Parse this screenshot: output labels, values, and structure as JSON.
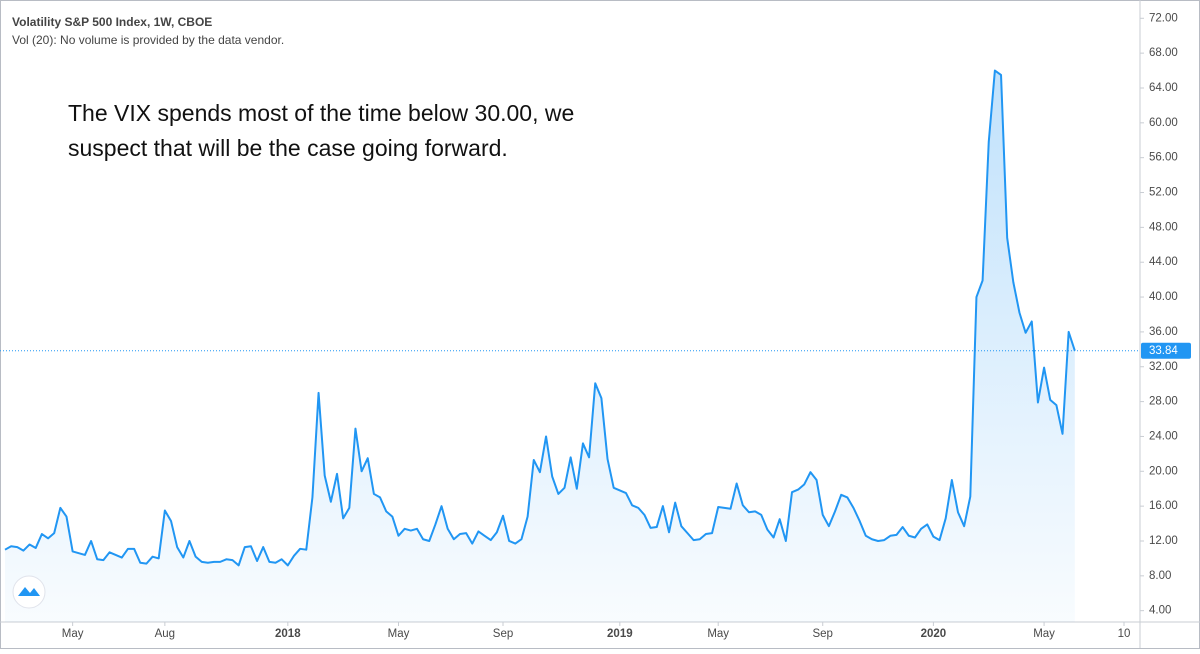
{
  "chart_data": {
    "type": "area",
    "title": "Volatility S&P 500 Index, 1W, CBOE",
    "subtitle": "Vol (20): No volume is provided by the data vendor.",
    "annotation": [
      "The VIX spends most of the time below 30.00, we",
      "suspect that will be the case going forward."
    ],
    "color": "#2196f3",
    "last_value_color": "#2196f3",
    "categories": [
      null,
      null,
      null,
      null,
      null,
      null,
      null,
      null,
      null,
      null,
      null,
      "May",
      null,
      null,
      null,
      null,
      null,
      null,
      null,
      null,
      null,
      null,
      null,
      null,
      null,
      null,
      "Aug",
      null,
      null,
      null,
      null,
      null,
      null,
      null,
      null,
      null,
      null,
      null,
      null,
      null,
      null,
      null,
      null,
      null,
      null,
      null,
      "2018",
      null,
      null,
      null,
      null,
      null,
      null,
      null,
      null,
      null,
      null,
      null,
      null,
      null,
      null,
      null,
      null,
      null,
      "May",
      null,
      null,
      null,
      null,
      null,
      null,
      null,
      null,
      null,
      null,
      null,
      null,
      null,
      null,
      null,
      null,
      "Sep",
      null,
      null,
      null,
      null,
      null,
      null,
      null,
      null,
      null,
      null,
      null,
      null,
      null,
      null,
      null,
      null,
      null,
      null,
      "2019",
      null,
      null,
      null,
      null,
      null,
      null,
      null,
      null,
      null,
      null,
      null,
      null,
      null,
      null,
      null,
      "May",
      null,
      null,
      null,
      null,
      null,
      null,
      null,
      null,
      null,
      null,
      null,
      null,
      null,
      null,
      null,
      null,
      "Sep",
      null,
      null,
      null,
      null,
      null,
      null,
      null,
      null,
      null,
      null,
      null,
      null,
      null,
      null,
      null,
      null,
      null,
      "2020",
      null,
      null,
      null,
      null,
      null,
      null,
      null,
      null,
      null,
      null,
      null,
      null,
      null,
      null,
      null,
      null,
      null,
      "May",
      null,
      null,
      null,
      null,
      null,
      null,
      null,
      null,
      null,
      null,
      null,
      null,
      "10"
    ],
    "values": [
      11.0,
      11.4,
      11.3,
      10.9,
      11.6,
      11.2,
      12.8,
      12.3,
      12.9,
      15.8,
      14.8,
      10.8,
      10.6,
      10.4,
      12.0,
      9.9,
      9.8,
      10.7,
      10.4,
      10.1,
      11.1,
      11.1,
      9.5,
      9.4,
      10.2,
      10.0,
      15.5,
      14.3,
      11.3,
      10.1,
      12.0,
      10.2,
      9.6,
      9.5,
      9.6,
      9.6,
      9.9,
      9.8,
      9.2,
      11.3,
      11.4,
      9.7,
      11.3,
      9.6,
      9.5,
      9.9,
      9.2,
      10.3,
      11.1,
      11.0,
      17.0,
      29.0,
      19.5,
      16.5,
      19.7,
      14.6,
      15.8,
      24.9,
      20.0,
      21.5,
      17.4,
      17.0,
      15.4,
      14.8,
      12.6,
      13.4,
      13.2,
      13.4,
      12.2,
      12.0,
      13.9,
      16.0,
      13.4,
      12.2,
      12.8,
      12.9,
      11.7,
      13.1,
      12.6,
      12.1,
      13.0,
      14.9,
      12.0,
      11.7,
      12.2,
      14.8,
      21.3,
      19.9,
      24.0,
      19.4,
      17.4,
      18.1,
      21.6,
      18.0,
      23.2,
      21.6,
      30.1,
      28.4,
      21.4,
      18.1,
      17.8,
      17.5,
      16.1,
      15.8,
      15.0,
      13.5,
      13.6,
      16.0,
      13.0,
      16.4,
      13.7,
      12.9,
      12.1,
      12.2,
      12.8,
      12.9,
      15.9,
      15.8,
      15.7,
      18.6,
      16.1,
      15.3,
      15.4,
      15.0,
      13.3,
      12.4,
      14.5,
      12.0,
      17.6,
      17.9,
      18.5,
      19.9,
      19.0,
      15.0,
      13.7,
      15.4,
      17.3,
      17.0,
      15.8,
      14.3,
      12.6,
      12.2,
      12.0,
      12.1,
      12.6,
      12.7,
      13.6,
      12.6,
      12.4,
      13.4,
      13.9,
      12.5,
      12.1,
      14.6,
      19.0,
      15.3,
      13.7,
      17.1,
      40.0,
      41.9,
      57.8,
      66.0,
      65.5,
      46.8,
      41.7,
      38.2,
      35.9,
      37.2,
      27.9,
      31.9,
      28.2,
      27.6,
      24.3,
      36.0,
      33.84,
      null,
      null,
      null,
      null,
      null,
      null,
      null,
      null
    ],
    "ylim": [
      2.7,
      74.1
    ],
    "yticks": [
      {
        "value": 4,
        "label": "4.00"
      },
      {
        "value": 8,
        "label": "8.00"
      },
      {
        "value": 12,
        "label": "12.00"
      },
      {
        "value": 16,
        "label": "16.00"
      },
      {
        "value": 20,
        "label": "20.00"
      },
      {
        "value": 24,
        "label": "24.00"
      },
      {
        "value": 28,
        "label": "28.00"
      },
      {
        "value": 32,
        "label": "32.00"
      },
      {
        "value": 36,
        "label": "36.00"
      },
      {
        "value": 40,
        "label": "40.00"
      },
      {
        "value": 44,
        "label": "44.00"
      },
      {
        "value": 48,
        "label": "48.00"
      },
      {
        "value": 52,
        "label": "52.00"
      },
      {
        "value": 56,
        "label": "56.00"
      },
      {
        "value": 60,
        "label": "60.00"
      },
      {
        "value": 64,
        "label": "64.00"
      },
      {
        "value": 68,
        "label": "68.00"
      },
      {
        "value": 72,
        "label": "72.00"
      }
    ],
    "last_value": 33.84,
    "grid": false
  }
}
